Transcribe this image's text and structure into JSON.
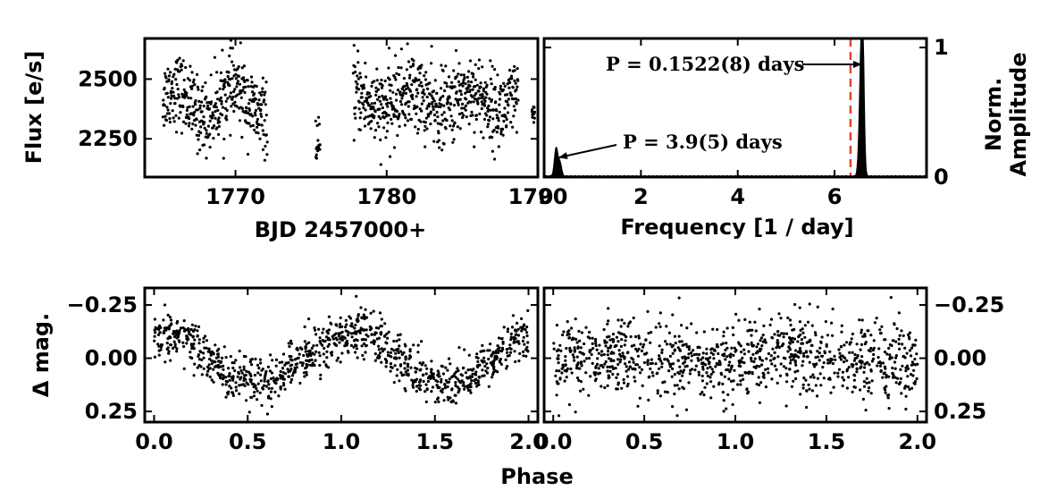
{
  "chart_data": [
    {
      "panel": "lightcurve",
      "type": "scatter",
      "xlabel": "BJD 2457000+",
      "ylabel": "Flux [e/s]",
      "xlim": [
        1764.0,
        1790.0
      ],
      "ylim": [
        2090,
        2670
      ],
      "xticks": [
        1770,
        1780,
        1790
      ],
      "xtick_labels": [
        "1770",
        "1780",
        "1790"
      ],
      "yticks": [
        2250,
        2500
      ],
      "ytick_labels": [
        "2250",
        "2500"
      ],
      "segments": [
        {
          "x_start": 1765.2,
          "x_end": 1772.1,
          "baseline": 2400,
          "scatter": 75,
          "mod_amp": 60
        },
        {
          "x_start": 1775.3,
          "x_end": 1775.6,
          "baseline": 2200,
          "scatter": 60,
          "mod_amp": 0
        },
        {
          "x_start": 1777.8,
          "x_end": 1788.7,
          "baseline": 2410,
          "scatter": 80,
          "mod_amp": 40
        },
        {
          "x_start": 1789.6,
          "x_end": 1789.8,
          "baseline": 2345,
          "scatter": 20,
          "mod_amp": 0
        }
      ],
      "grid": false
    },
    {
      "panel": "periodogram",
      "type": "line",
      "xlabel": "Frequency [1 / day]",
      "ylabel": "Norm. Amplitude",
      "xlim": [
        0.0,
        7.9
      ],
      "ylim": [
        0.0,
        1.07
      ],
      "xticks": [
        2,
        4,
        6
      ],
      "xtick_labels": [
        "2",
        "4",
        "6"
      ],
      "yticks": [
        0,
        1
      ],
      "ytick_labels": [
        "0",
        "1"
      ],
      "peaks": [
        {
          "frequency": 0.25,
          "amplitude": 0.22,
          "width": 0.035
        },
        {
          "frequency": 0.33,
          "amplitude": 0.1,
          "width": 0.03
        },
        {
          "frequency": 6.54,
          "amplitude": 0.62,
          "width": 0.035
        },
        {
          "frequency": 6.58,
          "amplitude": 1.0,
          "width": 0.03
        }
      ],
      "reference_line": {
        "frequency": 6.33,
        "color": "#e8412c",
        "style": "dashed"
      },
      "annotations": [
        {
          "text": "P = 0.1522(8) days",
          "arrow_to": [
            6.58,
            1.0
          ]
        },
        {
          "text": "P = 3.9(5) days",
          "arrow_to": [
            0.27,
            0.16
          ]
        }
      ],
      "grid": false
    },
    {
      "panel": "phase_short_period",
      "type": "scatter",
      "xlabel": "Phase",
      "ylabel": "Δ mag.",
      "xlim": [
        -0.05,
        2.05
      ],
      "ylim": [
        0.3,
        -0.33
      ],
      "y_inverted": true,
      "xticks": [
        0.0,
        0.5,
        1.0,
        1.5,
        2.0
      ],
      "xtick_labels": [
        "0.0",
        "0.5",
        "1.0",
        "1.5",
        "2.0"
      ],
      "yticks": [
        -0.25,
        0.0,
        0.25
      ],
      "ytick_labels": [
        "−0.25",
        "0.00",
        "0.25"
      ],
      "model": {
        "form": "sinusoid",
        "amplitude": 0.12,
        "peak_phase": 0.05,
        "scatter": 0.055
      },
      "grid": false
    },
    {
      "panel": "phase_long_period",
      "type": "scatter",
      "xlabel": "Phase",
      "ylabel": "",
      "xlim": [
        -0.05,
        2.05
      ],
      "ylim": [
        0.3,
        -0.33
      ],
      "y_inverted": true,
      "xticks": [
        0.0,
        0.5,
        1.0,
        1.5,
        2.0
      ],
      "xtick_labels": [
        "0.0",
        "0.5",
        "1.0",
        "1.5",
        "2.0"
      ],
      "yticks": [
        -0.25,
        0.0,
        0.25
      ],
      "ytick_labels": [
        "−0.25",
        "0.00",
        "0.25"
      ],
      "model": {
        "form": "sinusoid",
        "amplitude": 0.02,
        "peak_phase": 0.3,
        "scatter": 0.09
      },
      "grid": false
    }
  ],
  "shared_xlabel": "Phase",
  "colors": {
    "points": "#000000",
    "reference_line": "#e8412c",
    "frame": "#000000"
  }
}
